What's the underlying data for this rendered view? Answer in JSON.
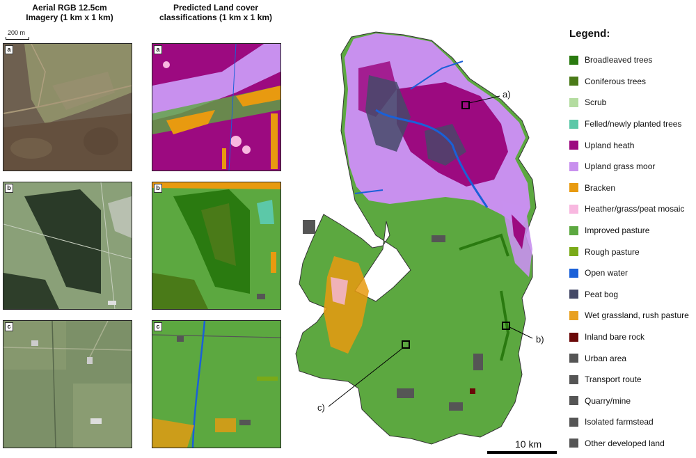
{
  "columns": {
    "aerial_title_line1": "Aerial RGB 12.5cm",
    "aerial_title_line2": "Imagery (1 km x 1 km)",
    "predicted_title_line1": "Predicted Land cover",
    "predicted_title_line2": "classifications (1 km x 1 km)"
  },
  "small_scale": "200 m",
  "panels": [
    "a",
    "b",
    "c"
  ],
  "callouts": {
    "a": "a)",
    "b": "b)",
    "c": "c)"
  },
  "main_scale": "10 km",
  "legend": {
    "title": "Legend:",
    "items": [
      {
        "label": "Broadleaved trees",
        "color": "#2a7a10"
      },
      {
        "label": "Coniferous trees",
        "color": "#4a7a18"
      },
      {
        "label": "Scrub",
        "color": "#b4dca0"
      },
      {
        "label": "Felled/newly planted trees",
        "color": "#5cc8a8"
      },
      {
        "label": "Upland heath",
        "color": "#9c0a80"
      },
      {
        "label": "Upland grass moor",
        "color": "#c890ee"
      },
      {
        "label": "Bracken",
        "color": "#e89a10"
      },
      {
        "label": "Heather/grass/peat mosaic",
        "color": "#f8b8e0"
      },
      {
        "label": "Improved pasture",
        "color": "#5ca840"
      },
      {
        "label": "Rough pasture",
        "color": "#7aaa18"
      },
      {
        "label": "Open water",
        "color": "#1a60d8"
      },
      {
        "label": "Peat bog",
        "color": "#454a68"
      },
      {
        "label": "Wet grassland, rush pasture",
        "color": "#e8a020"
      },
      {
        "label": "Inland bare rock",
        "color": "#6a0808"
      },
      {
        "label": "Urban area",
        "color": "#555555"
      },
      {
        "label": "Transport route",
        "color": "#555555"
      },
      {
        "label": "Quarry/mine",
        "color": "#555555"
      },
      {
        "label": "Isolated farmstead",
        "color": "#555555"
      },
      {
        "label": "Other developed land",
        "color": "#555555"
      }
    ]
  }
}
